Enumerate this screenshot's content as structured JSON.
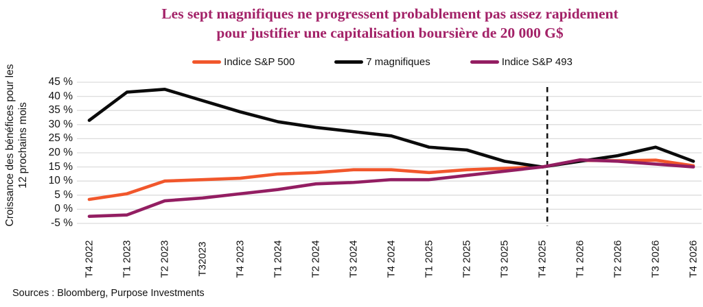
{
  "title": {
    "line1": "Les sept magnifiques ne progressent probablement pas assez rapidement",
    "line2": "pour justifier une capitalisation boursière de 20 000 G$",
    "color": "#A32268"
  },
  "source": "Sources : Bloomberg, Purpose Investments",
  "chart_data": {
    "type": "line",
    "title": "Les sept magnifiques ne progressent probablement pas assez rapidement pour justifier une capitalisation boursière de 20 000 G$",
    "ylabel_line1": "Croissance des bénéfices pour les",
    "ylabel_line2": "12 prochains mois",
    "categories": [
      "T4 2022",
      "T1 2023",
      "T2 2023",
      "T32023",
      "T4 2023",
      "T1 2024",
      "T2 2024",
      "T3 2024",
      "T4 2024",
      "T1 2025",
      "T2 2025",
      "T3 2025",
      "T4 2025",
      "T1 2026",
      "T2 2026",
      "T3 2026",
      "T4 2026"
    ],
    "series": [
      {
        "name": "Indice S&P 500",
        "color": "#F1572C",
        "values": [
          3.5,
          5.5,
          10,
          10.5,
          11,
          12.5,
          13,
          14,
          14,
          13,
          14,
          14.5,
          15,
          17.3,
          17.2,
          17.4,
          15.4
        ]
      },
      {
        "name": "7 magnifiques",
        "color": "#0b0b0b",
        "values": [
          31.5,
          41.5,
          42.5,
          38.5,
          34.5,
          31,
          29,
          27.5,
          26,
          22,
          21,
          17,
          15,
          17,
          19,
          22,
          17
        ]
      },
      {
        "name": "Indice S&P 493",
        "color": "#931E62",
        "values": [
          -2.5,
          -2,
          3,
          4,
          5.5,
          7,
          9,
          9.5,
          10.5,
          10.5,
          12,
          13.5,
          15,
          17.5,
          17,
          16,
          15
        ]
      }
    ],
    "yticks": [
      45,
      40,
      35,
      30,
      25,
      20,
      15,
      10,
      5,
      0,
      -5
    ],
    "ytick_suffix": " %",
    "ylim": [
      -5,
      45
    ],
    "grid": "horizontal",
    "gridline_color": "#dcdcdc",
    "legend_position": "top",
    "annotation": {
      "type": "dashed-vline",
      "color": "#111111",
      "between": [
        "T4 2025",
        "T1 2026"
      ],
      "fraction": 0.13
    }
  }
}
